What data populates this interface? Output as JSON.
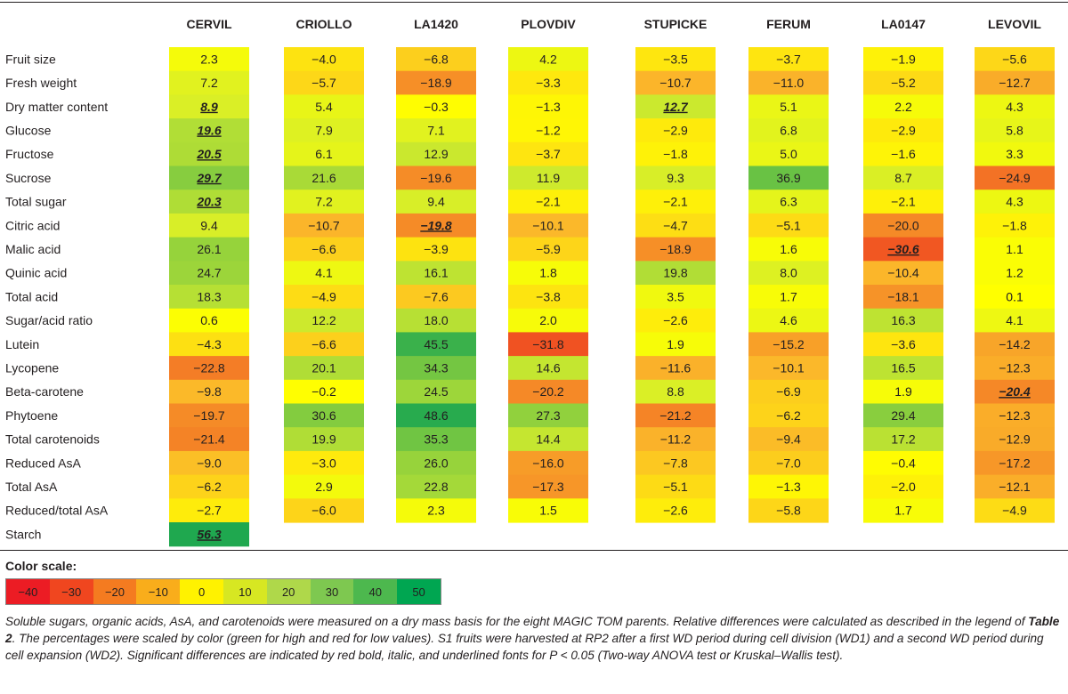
{
  "chart_data": {
    "type": "heatmap",
    "columns": [
      "CERVIL",
      "CRIOLLO",
      "LA1420",
      "PLOVDIV",
      "STUPICKE",
      "FERUM",
      "LA0147",
      "LEVOVIL"
    ],
    "rows": [
      {
        "label": "Fruit size",
        "values": [
          "2.3",
          "−4.0",
          "−6.8",
          "4.2",
          "−3.5",
          "−3.7",
          "−1.9",
          "−5.6"
        ]
      },
      {
        "label": "Fresh weight",
        "values": [
          "7.2",
          "−5.7",
          "−18.9",
          "−3.3",
          "−10.7",
          "−11.0",
          "−5.2",
          "−12.7"
        ]
      },
      {
        "label": "Dry matter content",
        "values": [
          "8.9",
          "5.4",
          "−0.3",
          "−1.3",
          "12.7",
          "5.1",
          "2.2",
          "4.3"
        ]
      },
      {
        "label": "Glucose",
        "values": [
          "19.6",
          "7.9",
          "7.1",
          "−1.2",
          "−2.9",
          "6.8",
          "−2.9",
          "5.8"
        ]
      },
      {
        "label": "Fructose",
        "values": [
          "20.5",
          "6.1",
          "12.9",
          "−3.7",
          "−1.8",
          "5.0",
          "−1.6",
          "3.3"
        ]
      },
      {
        "label": "Sucrose",
        "values": [
          "29.7",
          "21.6",
          "−19.6",
          "11.9",
          "9.3",
          "36.9",
          "8.7",
          "−24.9"
        ]
      },
      {
        "label": "Total sugar",
        "values": [
          "20.3",
          "7.2",
          "9.4",
          "−2.1",
          "−2.1",
          "6.3",
          "−2.1",
          "4.3"
        ]
      },
      {
        "label": "Citric acid",
        "values": [
          "9.4",
          "−10.7",
          "−19.8",
          "−10.1",
          "−4.7",
          "−5.1",
          "−20.0",
          "−1.8"
        ]
      },
      {
        "label": "Malic acid",
        "values": [
          "26.1",
          "−6.6",
          "−3.9",
          "−5.9",
          "−18.9",
          "1.6",
          "−30.6",
          "1.1"
        ]
      },
      {
        "label": "Quinic acid",
        "values": [
          "24.7",
          "4.1",
          "16.1",
          "1.8",
          "19.8",
          "8.0",
          "−10.4",
          "1.2"
        ]
      },
      {
        "label": "Total acid",
        "values": [
          "18.3",
          "−4.9",
          "−7.6",
          "−3.8",
          "3.5",
          "1.7",
          "−18.1",
          "0.1"
        ]
      },
      {
        "label": "Sugar/acid ratio",
        "values": [
          "0.6",
          "12.2",
          "18.0",
          "2.0",
          "−2.6",
          "4.6",
          "16.3",
          "4.1"
        ]
      },
      {
        "label": "Lutein",
        "values": [
          "−4.3",
          "−6.6",
          "45.5",
          "−31.8",
          "1.9",
          "−15.2",
          "−3.6",
          "−14.2"
        ]
      },
      {
        "label": "Lycopene",
        "values": [
          "−22.8",
          "20.1",
          "34.3",
          "14.6",
          "−11.6",
          "−10.1",
          "16.5",
          "−12.3"
        ]
      },
      {
        "label": "Beta-carotene",
        "values": [
          "−9.8",
          "−0.2",
          "24.5",
          "−20.2",
          "8.8",
          "−6.9",
          "1.9",
          "−20.4"
        ]
      },
      {
        "label": "Phytoene",
        "values": [
          "−19.7",
          "30.6",
          "48.6",
          "27.3",
          "−21.2",
          "−6.2",
          "29.4",
          "−12.3"
        ]
      },
      {
        "label": "Total carotenoids",
        "values": [
          "−21.4",
          "19.9",
          "35.3",
          "14.4",
          "−11.2",
          "−9.4",
          "17.2",
          "−12.9"
        ]
      },
      {
        "label": "Reduced AsA",
        "values": [
          "−9.0",
          "−3.0",
          "26.0",
          "−16.0",
          "−7.8",
          "−7.0",
          "−0.4",
          "−17.2"
        ]
      },
      {
        "label": "Total AsA",
        "values": [
          "−6.2",
          "2.9",
          "22.8",
          "−17.3",
          "−5.1",
          "−1.3",
          "−2.0",
          "−12.1"
        ]
      },
      {
        "label": "Reduced/total AsA",
        "values": [
          "−2.7",
          "−6.0",
          "2.3",
          "1.5",
          "−2.6",
          "−5.8",
          "1.7",
          "−4.9"
        ]
      },
      {
        "label": "Starch",
        "values": [
          "56.3",
          "",
          "",
          "",
          "",
          "",
          "",
          ""
        ]
      }
    ],
    "significant": [
      [
        "Dry matter content",
        "CERVIL"
      ],
      [
        "Glucose",
        "CERVIL"
      ],
      [
        "Fructose",
        "CERVIL"
      ],
      [
        "Sucrose",
        "CERVIL"
      ],
      [
        "Total sugar",
        "CERVIL"
      ],
      [
        "Starch",
        "CERVIL"
      ],
      [
        "Dry matter content",
        "STUPICKE"
      ],
      [
        "Citric acid",
        "LA1420"
      ],
      [
        "Malic acid",
        "LA0147"
      ],
      [
        "Beta-carotene",
        "LEVOVIL"
      ]
    ],
    "color_scale": {
      "title": "Color scale:",
      "ticks": [
        "−40",
        "−30",
        "−20",
        "−10",
        "0",
        "10",
        "20",
        "30",
        "40",
        "50"
      ],
      "colors": [
        "#ec1c24",
        "#f0461f",
        "#f47b20",
        "#f9ad1b",
        "#fff200",
        "#d7e722",
        "#afd84a",
        "#7ec850",
        "#4db84e",
        "#00a651"
      ]
    }
  },
  "caption": {
    "part1": "Soluble sugars, organic acids, AsA, and carotenoids were measured on a dry mass basis for the eight MAGIC TOM parents. Relative differences were calculated as described in the legend of ",
    "ref": "Table 2",
    "part2": ". The percentages were scaled by color (green for high and red for low values). S1 fruits were harvested at RP2 after a first WD period during cell division (WD1) and a second WD period during cell expansion (WD2). Significant differences are indicated by red bold, italic, and underlined fonts for P < 0.05 (Two-way ANOVA test or Kruskal–Wallis test)."
  }
}
